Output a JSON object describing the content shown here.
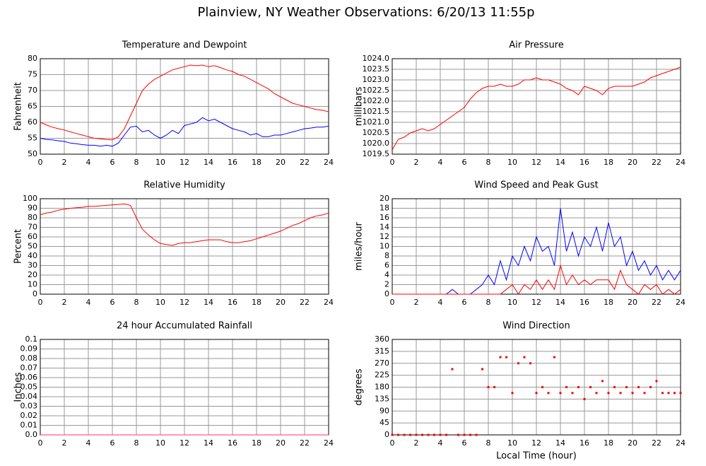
{
  "title": "Plainview, NY Weather Observations: 6/20/13 11:55p",
  "chart_data": [
    {
      "type": "line",
      "title": "Temperature and Dewpoint",
      "y_label": "Fahrenheit",
      "x": [
        0,
        0.5,
        1,
        1.5,
        2,
        2.5,
        3,
        3.5,
        4,
        4.5,
        5,
        5.5,
        6,
        6.5,
        7,
        7.5,
        8,
        8.5,
        9,
        9.5,
        10,
        10.5,
        11,
        11.5,
        12,
        12.5,
        13,
        13.5,
        14,
        14.5,
        15,
        15.5,
        16,
        16.5,
        17,
        17.5,
        18,
        18.5,
        19,
        19.5,
        20,
        20.5,
        21,
        21.5,
        22,
        22.5,
        23,
        23.5,
        24
      ],
      "series": [
        {
          "color": "#ff0000",
          "values": [
            60,
            59.2,
            58.5,
            58,
            57.6,
            57,
            56.5,
            56,
            55.5,
            55,
            54.8,
            54.6,
            54.5,
            55.5,
            58,
            62,
            66,
            70,
            72,
            73.5,
            74.5,
            75.5,
            76.5,
            77,
            77.5,
            78,
            77.8,
            78,
            77.5,
            77.8,
            77.2,
            76.5,
            76,
            75,
            74.5,
            73.5,
            72.5,
            71.5,
            70.5,
            69,
            68,
            67,
            66,
            65.5,
            65,
            64.5,
            64,
            63.8,
            63.3
          ]
        },
        {
          "color": "#0000ff",
          "values": [
            55,
            54.6,
            54.5,
            54.2,
            54,
            53.5,
            53.3,
            53,
            52.8,
            52.8,
            52.5,
            52.8,
            52.5,
            53.5,
            56,
            58.5,
            58.8,
            57,
            57.5,
            56,
            55,
            56,
            57.5,
            56.5,
            59,
            59.5,
            60,
            61.5,
            60.5,
            61,
            60,
            59,
            58,
            57.5,
            57,
            56,
            56.5,
            55.5,
            55.5,
            56,
            56,
            56.5,
            57,
            57.5,
            58,
            58.2,
            58.5,
            58.5,
            58.8
          ]
        }
      ],
      "xlim": [
        0,
        24
      ],
      "xticks": [
        0,
        2,
        4,
        6,
        8,
        10,
        12,
        14,
        16,
        18,
        20,
        22,
        24
      ],
      "ylim": [
        50,
        80
      ],
      "yticks": [
        50,
        55,
        60,
        65,
        70,
        75,
        80
      ],
      "grid": true
    },
    {
      "type": "line",
      "title": "Air Pressure",
      "y_label": "millibars",
      "x": [
        0,
        0.5,
        1,
        1.5,
        2,
        2.5,
        3,
        3.5,
        4,
        4.5,
        5,
        5.5,
        6,
        6.5,
        7,
        7.5,
        8,
        8.5,
        9,
        9.5,
        10,
        10.5,
        11,
        11.5,
        12,
        12.5,
        13,
        13.5,
        14,
        14.5,
        15,
        15.5,
        16,
        16.5,
        17,
        17.5,
        18,
        18.5,
        19,
        19.5,
        20,
        20.5,
        21,
        21.5,
        22,
        22.5,
        23,
        23.5,
        24
      ],
      "series": [
        {
          "color": "#ff0000",
          "values": [
            1019.7,
            1020.2,
            1020.3,
            1020.5,
            1020.6,
            1020.7,
            1020.6,
            1020.7,
            1020.9,
            1021.1,
            1021.3,
            1021.5,
            1021.7,
            1022.1,
            1022.4,
            1022.6,
            1022.7,
            1022.7,
            1022.8,
            1022.7,
            1022.7,
            1022.8,
            1023.0,
            1023.0,
            1023.1,
            1023.0,
            1023.0,
            1022.9,
            1022.8,
            1022.6,
            1022.5,
            1022.3,
            1022.7,
            1022.6,
            1022.5,
            1022.3,
            1022.6,
            1022.7,
            1022.7,
            1022.7,
            1022.7,
            1022.8,
            1022.9,
            1023.1,
            1023.2,
            1023.3,
            1023.4,
            1023.5,
            1023.6
          ]
        }
      ],
      "xlim": [
        0,
        24
      ],
      "xticks": [
        0,
        2,
        4,
        6,
        8,
        10,
        12,
        14,
        16,
        18,
        20,
        22,
        24
      ],
      "ylim": [
        1019.5,
        1024
      ],
      "yticks": [
        1019.5,
        {
          "value": 1020,
          "label": "1020.0"
        },
        1020.5,
        {
          "value": 1021,
          "label": "1021.0"
        },
        1021.5,
        {
          "value": 1022,
          "label": "1022.0"
        },
        1022.5,
        {
          "value": 1023,
          "label": "1023.0"
        },
        1023.5,
        {
          "value": 1024,
          "label": "1024.0"
        }
      ],
      "grid": true
    },
    {
      "type": "line",
      "title": "Relative Humidity",
      "y_label": "Percent",
      "x": [
        0,
        0.5,
        1,
        1.5,
        2,
        2.5,
        3,
        3.5,
        4,
        4.5,
        5,
        5.5,
        6,
        6.5,
        7,
        7.5,
        8,
        8.5,
        9,
        9.5,
        10,
        10.5,
        11,
        11.5,
        12,
        12.5,
        13,
        13.5,
        14,
        14.5,
        15,
        15.5,
        16,
        16.5,
        17,
        17.5,
        18,
        18.5,
        19,
        19.5,
        20,
        20.5,
        21,
        21.5,
        22,
        22.5,
        23,
        23.5,
        24
      ],
      "series": [
        {
          "color": "#ff0000",
          "values": [
            83,
            85,
            86,
            88,
            89,
            90,
            90.5,
            91,
            92,
            92,
            92.5,
            93,
            93.5,
            94,
            94.5,
            93,
            80,
            68,
            62,
            57,
            53,
            52,
            51,
            53,
            54,
            54,
            55,
            56,
            57,
            57,
            57,
            55,
            54,
            54,
            55,
            56,
            58,
            60,
            62,
            64,
            66,
            69,
            72,
            74,
            77,
            80,
            82,
            83,
            85
          ]
        }
      ],
      "xlim": [
        0,
        24
      ],
      "xticks": [
        0,
        2,
        4,
        6,
        8,
        10,
        12,
        14,
        16,
        18,
        20,
        22,
        24
      ],
      "ylim": [
        0,
        100
      ],
      "yticks": [
        0,
        10,
        20,
        30,
        40,
        50,
        60,
        70,
        80,
        90,
        100
      ],
      "grid": true
    },
    {
      "type": "line",
      "title": "Wind Speed and Peak Gust",
      "y_label": "miles/hour",
      "x": [
        0,
        0.5,
        1,
        1.5,
        2,
        2.5,
        3,
        3.5,
        4,
        4.5,
        5,
        5.5,
        6,
        6.5,
        7,
        7.5,
        8,
        8.5,
        9,
        9.5,
        10,
        10.5,
        11,
        11.5,
        12,
        12.5,
        13,
        13.5,
        14,
        14.5,
        15,
        15.5,
        16,
        16.5,
        17,
        17.5,
        18,
        18.5,
        19,
        19.5,
        20,
        20.5,
        21,
        21.5,
        22,
        22.5,
        23,
        23.5,
        24
      ],
      "series": [
        {
          "color": "#0000ff",
          "values": [
            0,
            0,
            0,
            0,
            0,
            0,
            0,
            0,
            0,
            0,
            1,
            0,
            0,
            0,
            1,
            2,
            4,
            2,
            7,
            3,
            8,
            6,
            10,
            7,
            12,
            9,
            10,
            6,
            18,
            9,
            13,
            8,
            12,
            10,
            14,
            9,
            15,
            10,
            12,
            6,
            9,
            5,
            7,
            4,
            6,
            3,
            5,
            3,
            5
          ]
        },
        {
          "color": "#ff0000",
          "values": [
            0,
            0,
            0,
            0,
            0,
            0,
            0,
            0,
            0,
            0,
            0,
            0,
            0,
            0,
            0,
            0,
            0,
            0,
            0,
            1,
            2,
            0,
            2,
            1,
            3,
            1,
            3,
            1,
            6,
            2,
            4,
            2,
            3,
            2,
            3,
            3,
            3,
            1,
            5,
            2,
            1,
            0,
            2,
            1,
            2,
            0,
            1,
            0,
            1
          ]
        }
      ],
      "xlim": [
        0,
        24
      ],
      "xticks": [
        0,
        2,
        4,
        6,
        8,
        10,
        12,
        14,
        16,
        18,
        20,
        22,
        24
      ],
      "ylim": [
        0,
        20
      ],
      "yticks": [
        0,
        2,
        4,
        6,
        8,
        10,
        12,
        14,
        16,
        18,
        20
      ],
      "grid": true
    },
    {
      "type": "line",
      "title": "24 hour Accumulated Rainfall",
      "y_label": "Inches",
      "x": [
        0,
        24
      ],
      "series": [
        {
          "color": "#ff3366",
          "values": [
            0,
            0
          ]
        }
      ],
      "xlim": [
        0,
        24
      ],
      "xticks": [
        0,
        2,
        4,
        6,
        8,
        10,
        12,
        14,
        16,
        18,
        20,
        22,
        24
      ],
      "ylim": [
        0,
        0.1
      ],
      "yticks": [
        {
          "value": 0,
          "label": "0.0"
        },
        0.01,
        0.02,
        0.03,
        0.04,
        0.05,
        0.06,
        0.07,
        0.08,
        0.09,
        0.1
      ],
      "grid": true
    },
    {
      "type": "scatter",
      "title": "Wind Direction",
      "y_label": "degrees",
      "x_label": "Local Time (hour)",
      "x": [
        0,
        0.5,
        1,
        1.5,
        2,
        2.5,
        3,
        3.5,
        4,
        4.5,
        5,
        5.5,
        6,
        6.5,
        7,
        7.5,
        8,
        8.5,
        9,
        9.5,
        10,
        10.5,
        11,
        11.5,
        12,
        12.5,
        13,
        13.5,
        14,
        14.5,
        15,
        15.5,
        16,
        16.5,
        17,
        17.5,
        18,
        18.5,
        19,
        19.5,
        20,
        20.5,
        21,
        21.5,
        22,
        22.5,
        23,
        23.5,
        24
      ],
      "series": [
        {
          "color": "#ff0000",
          "values": [
            0,
            0,
            0,
            0,
            0,
            0,
            0,
            0,
            0,
            0,
            248,
            0,
            0,
            0,
            0,
            248,
            180,
            180,
            293,
            293,
            158,
            270,
            293,
            270,
            158,
            180,
            158,
            293,
            158,
            180,
            158,
            180,
            135,
            180,
            158,
            203,
            158,
            180,
            158,
            180,
            158,
            180,
            158,
            180,
            203,
            158,
            158,
            158,
            158
          ]
        }
      ],
      "xlim": [
        0,
        24
      ],
      "xticks": [
        0,
        2,
        4,
        6,
        8,
        10,
        12,
        14,
        16,
        18,
        20,
        22,
        24
      ],
      "ylim": [
        0,
        360
      ],
      "yticks": [
        0,
        45,
        90,
        135,
        180,
        225,
        270,
        315,
        360
      ],
      "grid": true
    }
  ]
}
